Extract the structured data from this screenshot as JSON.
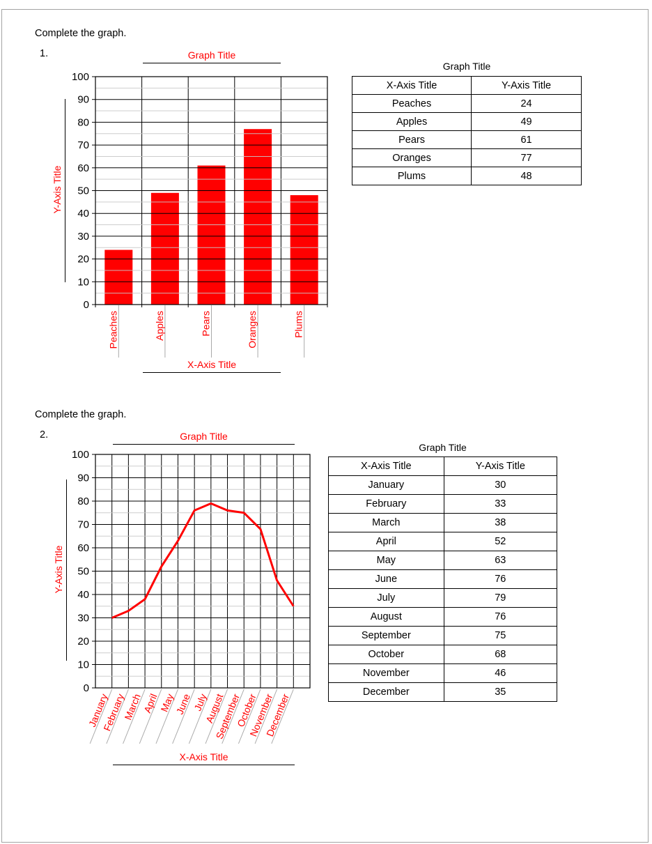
{
  "page": {
    "instruction_1": "Complete the graph.",
    "instruction_2": "Complete the graph.",
    "question_1_number": "1.",
    "question_2_number": "2."
  },
  "colors": {
    "accent_red": "#FF0000",
    "grid_major": "#000000",
    "grid_minor": "#C8C8C8",
    "leader_line": "#A9A9A9",
    "page_border": "#A3A3A3",
    "text": "#000000"
  },
  "chart_data": [
    {
      "type": "bar",
      "title": "Graph Title",
      "xlabel": "X-Axis Title",
      "ylabel": "Y-Axis Title",
      "categories": [
        "Peaches",
        "Apples",
        "Pears",
        "Oranges",
        "Plums"
      ],
      "values": [
        24,
        49,
        61,
        77,
        48
      ],
      "ylim": [
        0,
        100
      ],
      "ytick_step": 10,
      "minor_step": 5,
      "yticks": [
        0,
        10,
        20,
        30,
        40,
        50,
        60,
        70,
        80,
        90,
        100
      ],
      "grid": "major-black-minor-gray",
      "bar_color": "#FF0000",
      "label_color": "#FF0000",
      "data_table": {
        "title": "Graph Title",
        "headers": [
          "X-Axis Title",
          "Y-Axis Title"
        ],
        "rows": [
          [
            "Peaches",
            "24"
          ],
          [
            "Apples",
            "49"
          ],
          [
            "Pears",
            "61"
          ],
          [
            "Oranges",
            "77"
          ],
          [
            "Plums",
            "48"
          ]
        ]
      }
    },
    {
      "type": "line",
      "title": "Graph Title",
      "xlabel": "X-Axis Title",
      "ylabel": "Y-Axis Title",
      "categories": [
        "January",
        "February",
        "March",
        "April",
        "May",
        "June",
        "July",
        "August",
        "September",
        "October",
        "November",
        "December"
      ],
      "values": [
        30,
        33,
        38,
        52,
        63,
        76,
        79,
        76,
        75,
        68,
        46,
        35
      ],
      "ylim": [
        0,
        100
      ],
      "ytick_step": 10,
      "minor_step": 5,
      "yticks": [
        0,
        10,
        20,
        30,
        40,
        50,
        60,
        70,
        80,
        90,
        100
      ],
      "grid": "full-grid-black-minor-gray",
      "line_color": "#FF0000",
      "label_color": "#FF0000",
      "data_table": {
        "title": "Graph Title",
        "headers": [
          "X-Axis Title",
          "Y-Axis Title"
        ],
        "rows": [
          [
            "January",
            "30"
          ],
          [
            "February",
            "33"
          ],
          [
            "March",
            "38"
          ],
          [
            "April",
            "52"
          ],
          [
            "May",
            "63"
          ],
          [
            "June",
            "76"
          ],
          [
            "July",
            "79"
          ],
          [
            "August",
            "76"
          ],
          [
            "September",
            "75"
          ],
          [
            "October",
            "68"
          ],
          [
            "November",
            "46"
          ],
          [
            "December",
            "35"
          ]
        ]
      }
    }
  ]
}
